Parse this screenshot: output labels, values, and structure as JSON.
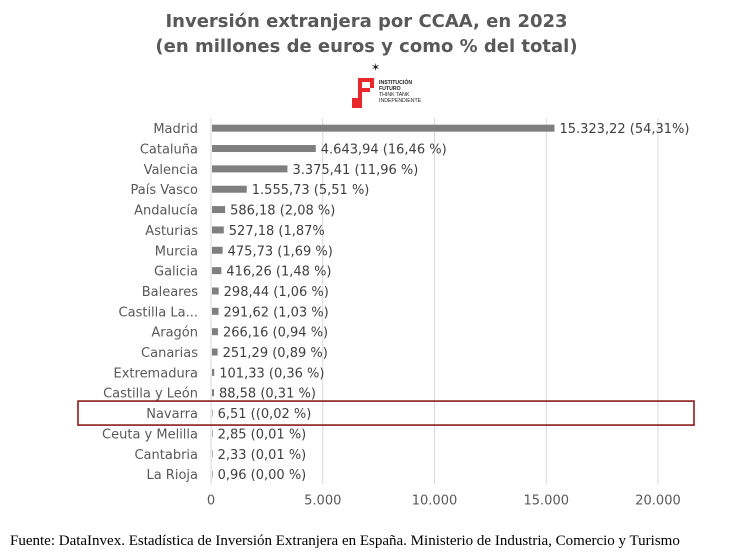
{
  "title_line1": "Inversión extranjera por CCAA, en 2023",
  "title_line2": "(en millones de euros y como % del total)",
  "logo": {
    "line1": "INSTITUCIÓN",
    "line2": "FUTURO",
    "line3": "THINK TANK",
    "line4": "INDEPENDIENTE",
    "color": "#e8282b"
  },
  "source": "Fuente: DataInvex. Estadística de Inversión Extranjera en España. Ministerio de Industria, Comercio y Turismo",
  "chart_data": {
    "type": "bar",
    "orientation": "horizontal",
    "categories": [
      "Madrid",
      "Cataluña",
      "Valencia",
      "País Vasco",
      "Andalucía",
      "Asturias",
      "Murcia",
      "Galicia",
      "Baleares",
      "Castilla La...",
      "Aragón",
      "Canarias",
      "Extremadura",
      "Castilla y León",
      "Navarra",
      "Ceuta y Melilla",
      "Cantabria",
      "La Rioja"
    ],
    "values": [
      15323.22,
      4643.94,
      3375.41,
      1555.73,
      586.18,
      527.18,
      475.73,
      416.26,
      298.44,
      291.62,
      266.16,
      251.29,
      101.33,
      88.58,
      6.51,
      2.85,
      2.33,
      0.96
    ],
    "data_labels": [
      "15.323,22 (54,31%)",
      "4.643,94 (16,46 %)",
      "3.375,41 (11,96 %)",
      "1.555,73 (5,51 %)",
      "586,18 (2,08 %)",
      "527,18 (1,87%",
      "475,73 (1,69 %)",
      "416,26 (1,48 %)",
      "298,44 (1,06 %)",
      "291,62 (1,03 %)",
      "266,16 (0,94 %)",
      "251,29 (0,89 %)",
      "101,33 (0,36 %)",
      "88,58 (0,31 %)",
      "6,51 ((0,02 %)",
      "2,85 (0,01 %)",
      "2,33 (0,01 %)",
      "0,96 (0,00 %)"
    ],
    "xlim": [
      0,
      20000
    ],
    "xticks": [
      0,
      5000,
      10000,
      15000,
      20000
    ],
    "xtick_labels": [
      "0",
      "5.000",
      "10.000",
      "15.000",
      "20.000"
    ],
    "grid": "vertical",
    "bar_color": "#7f7f7f",
    "highlight": {
      "category": "Navarra",
      "color": "#8b1a1a"
    }
  }
}
